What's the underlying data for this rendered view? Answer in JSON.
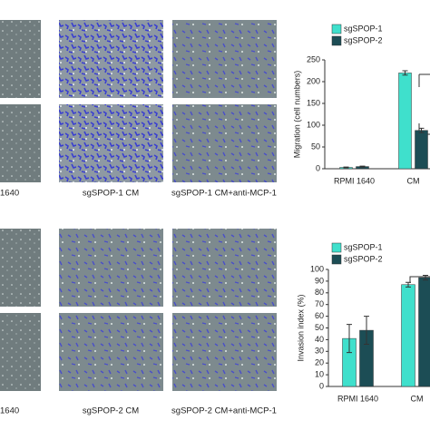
{
  "image_labels": [
    "1640",
    "sgSPOP-1 CM",
    "sgSPOP-1 CM+anti-MCP-1",
    "1640",
    "sgSPOP-2 CM",
    "sgSPOP-2 CM+anti-MCP-1"
  ],
  "chart_data": [
    {
      "type": "bar",
      "ylabel": "Migration (cell numbers)",
      "categories": [
        "RPMI 1640",
        "CM"
      ],
      "series": [
        {
          "name": "sgSPOP-1",
          "color": "#3fe0cc",
          "values": [
            3,
            220
          ],
          "errors": [
            1,
            5
          ]
        },
        {
          "name": "sgSPOP-2",
          "color": "#1c4d55",
          "values": [
            5,
            88
          ],
          "errors": [
            1,
            5
          ]
        }
      ],
      "ylim": [
        0,
        250
      ],
      "yticks": [
        0,
        50,
        100,
        150,
        200,
        250
      ]
    },
    {
      "type": "bar",
      "ylabel": "Invasion index (%)",
      "categories": [
        "RPMI 1640",
        "CM"
      ],
      "series": [
        {
          "name": "sgSPOP-1",
          "color": "#3fe0cc",
          "values": [
            41,
            87
          ],
          "errors": [
            12,
            2
          ]
        },
        {
          "name": "sgSPOP-2",
          "color": "#1c4d55",
          "values": [
            48,
            93
          ],
          "errors": [
            12,
            2
          ]
        }
      ],
      "ylim": [
        0,
        100
      ],
      "yticks": [
        0,
        10,
        20,
        30,
        40,
        50,
        60,
        70,
        80,
        90,
        100
      ]
    }
  ]
}
